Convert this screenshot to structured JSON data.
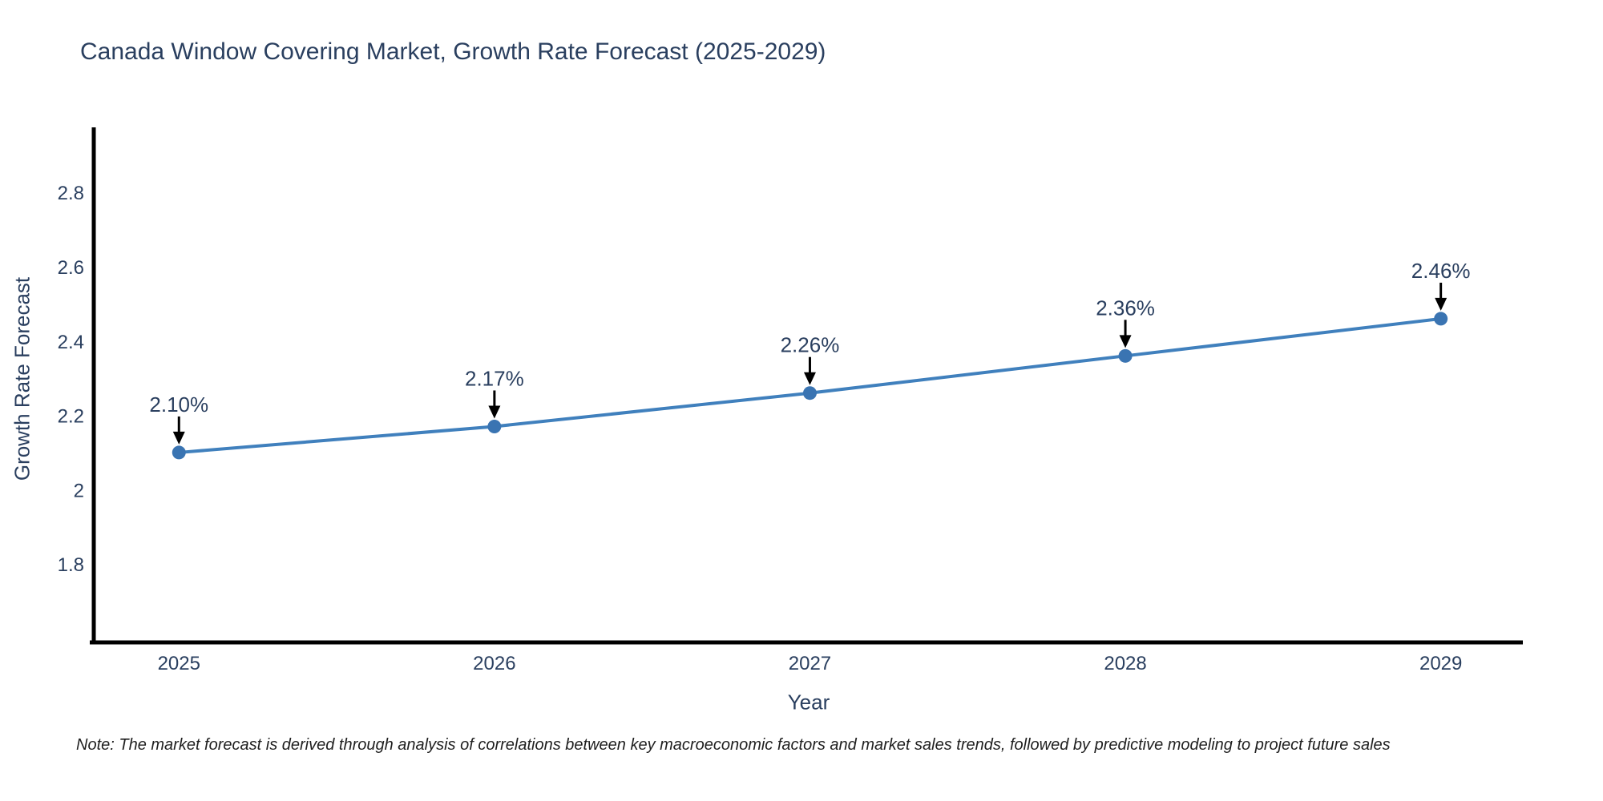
{
  "title": "Canada Window Covering Market, Growth Rate Forecast (2025-2029)",
  "note": "Note: The market forecast is derived through analysis of correlations between key macroeconomic factors and market sales trends, followed by predictive modeling to project future sales",
  "colors": {
    "line": "#4080bd",
    "marker": "#3a74b2",
    "axis": "#000000",
    "tick_text": "#2a3f5f",
    "annotation_text": "#2a3f5f",
    "arrow": "#000000",
    "background": "#ffffff"
  },
  "chart_data": {
    "type": "line",
    "title": "Canada Window Covering Market, Growth Rate Forecast (2025-2029)",
    "xlabel": "Year",
    "ylabel": "Growth Rate Forecast",
    "x": [
      2025,
      2026,
      2027,
      2028,
      2029
    ],
    "y": [
      2.1,
      2.17,
      2.26,
      2.36,
      2.46
    ],
    "point_labels": [
      "2.10%",
      "2.17%",
      "2.26%",
      "2.36%",
      "2.46%"
    ],
    "x_tick_labels": [
      "2025",
      "2026",
      "2027",
      "2028",
      "2029"
    ],
    "y_ticks": [
      2.8,
      2.6,
      2.4,
      2.2,
      2.0,
      1.8
    ],
    "y_tick_labels": [
      "2.8",
      "2.6",
      "2.4",
      "2.2",
      "2",
      "1.8"
    ],
    "xlim": [
      2024.73,
      2029.26
    ],
    "ylim": [
      1.589,
      2.975
    ],
    "grid": false,
    "legend": false,
    "annotations_have_arrows": true
  }
}
